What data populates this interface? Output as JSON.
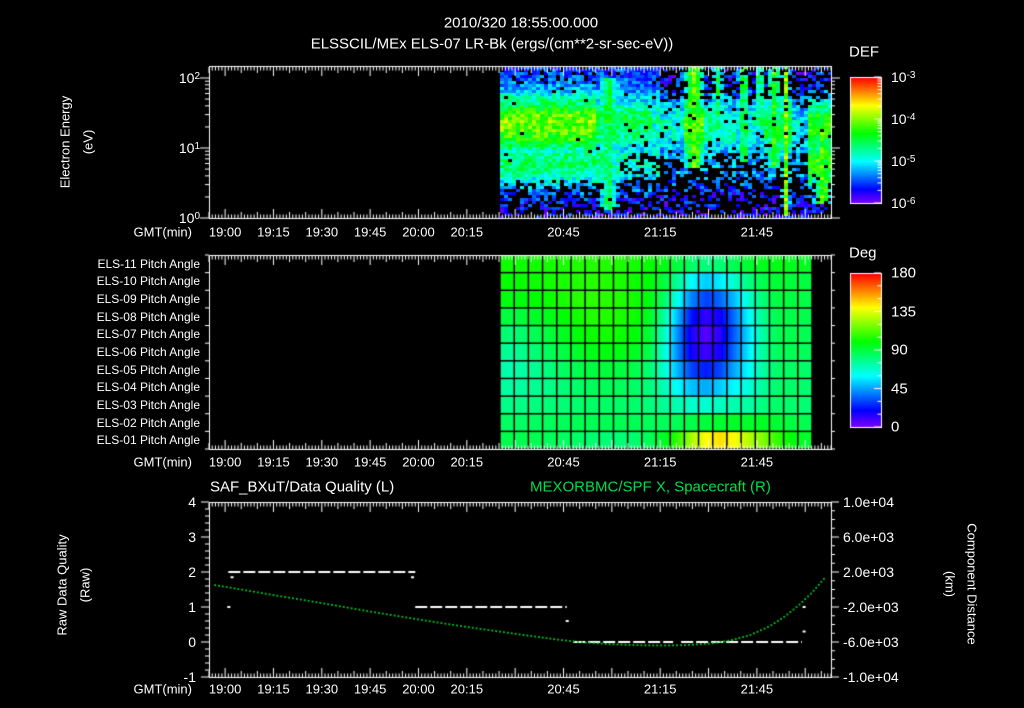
{
  "header": {
    "line1": "2010/320 18:55:00.000",
    "line2": "ELSSCIL/MEx ELS-07 LR-Bk  (ergs/(cm**2-sr-sec-eV))"
  },
  "colors": {
    "background": "#000000",
    "text": "#ffffff",
    "frame": "#ffffff",
    "curve_green": "#00cc22",
    "title_green": "#00dd44",
    "quality_white": "#ffffff"
  },
  "time_axis": {
    "label": "GMT(min)",
    "start_gmt": "18:55",
    "end_gmt": "22:08",
    "minutes_span": 193,
    "tick_labels": [
      {
        "text": "19:00",
        "t": 5
      },
      {
        "text": "19:15",
        "t": 20
      },
      {
        "text": "19:30",
        "t": 35
      },
      {
        "text": "19:45",
        "t": 50
      },
      {
        "text": "20:00",
        "t": 65
      },
      {
        "text": "20:15",
        "t": 80
      },
      {
        "text": "20:45",
        "t": 110
      },
      {
        "text": "21:15",
        "t": 140
      },
      {
        "text": "21:45",
        "t": 170
      }
    ]
  },
  "panels": {
    "spectrogram": {
      "y_axis_label": "Electron Energy",
      "y_axis_label2": "(eV)",
      "y_tick_labels": [
        {
          "text": "10^2",
          "logE": 2
        },
        {
          "text": "10^1",
          "logE": 1
        },
        {
          "text": "10^0",
          "logE": 0
        }
      ],
      "colorbar": {
        "title": "DEF",
        "tick_labels": [
          "10^-3",
          "10^-4",
          "10^-5",
          "10^-6"
        ]
      }
    },
    "pitch": {
      "colorbar": {
        "title": "Deg",
        "tick_labels": [
          "180",
          "135",
          "90",
          "45",
          "0"
        ]
      }
    },
    "quality": {
      "title_left": "SAF_BXuT/Data Quality (L)",
      "title_right": "MEXORBMC/SPF X, Spacecraft (R)",
      "left_axis_label": "Raw Data Quality",
      "left_axis_label2": "(Raw)",
      "left_tick_labels": [
        "4",
        "3",
        "2",
        "1",
        "0",
        "-1"
      ],
      "right_axis_label": "Component Distance",
      "right_axis_label2": "(km)",
      "right_tick_labels": [
        "1.0e+04",
        "6.0e+03",
        "2.0e+03",
        "-2.0e+03",
        "-6.0e+03",
        "-1.0e+04"
      ]
    }
  },
  "chart_data": [
    {
      "type": "heatmap",
      "name": "electron-energy-spectrogram",
      "title": "ELSSCIL/MEx ELS-07 LR-Bk (ergs/(cm**2-sr-sec-eV))",
      "xlabel": "GMT(min)",
      "ylabel": "Electron Energy (eV)",
      "x_range_gmt": [
        "18:55",
        "22:08"
      ],
      "y_scale": "log",
      "y_range_ev": [
        1,
        150
      ],
      "colorbar": {
        "title": "DEF",
        "scale": "log",
        "range": [
          1e-06,
          0.001
        ],
        "palette": "rainbow"
      },
      "data_start_gmt": "20:25",
      "features": {
        "data_start_min": 90,
        "background_log10": -5.75,
        "black_threshold": -5.98,
        "bands": [
          {
            "center_logE": 1.3,
            "sigma": 0.33,
            "amp_steps": [
              [
                90,
                1.65
              ],
              [
                120,
                1.2
              ],
              [
                128,
                1.15
              ],
              [
                137,
                0.9
              ],
              [
                147,
                1.6
              ],
              [
                154,
                1.0
              ],
              [
                163,
                0.9
              ],
              [
                172,
                1.25
              ],
              [
                177,
                1.4
              ],
              [
                181,
                0.75
              ],
              [
                186,
                1.5
              ]
            ]
          },
          {
            "center_logE": 0.78,
            "sigma": 0.28,
            "amp_steps": [
              [
                90,
                1.15
              ],
              [
                125,
                0.9
              ],
              [
                140,
                0.55
              ],
              [
                186,
                1.5
              ]
            ]
          }
        ],
        "streaks": [
          [
            124,
            2.0,
            0.2,
            1.9,
            1.15
          ],
          [
            150.5,
            2.2,
            0.8,
            2.2,
            1.65
          ],
          [
            158,
            1.2,
            1.55,
            2.2,
            1.2
          ],
          [
            166,
            1.2,
            0.9,
            2.2,
            1.35
          ],
          [
            171,
            1.0,
            1.4,
            2.2,
            1.3
          ],
          [
            175.5,
            1.5,
            0.8,
            2.2,
            1.45
          ],
          [
            179,
            0.8,
            0.1,
            2.2,
            1.75
          ],
          [
            190.5,
            1.8,
            0.3,
            1.15,
            1.6
          ]
        ]
      }
    },
    {
      "type": "heatmap",
      "name": "pitch-angle-grid",
      "xlabel": "GMT(min)",
      "colorbar": {
        "title": "Deg",
        "range": [
          0,
          180
        ],
        "palette": "rainbow"
      },
      "x_start_gmt": "20:25",
      "x_end_gmt": "22:02",
      "n_cols": 22,
      "rows": [
        "ELS-11 Pitch Angle",
        "ELS-10 Pitch Angle",
        "ELS-09 Pitch Angle",
        "ELS-08 Pitch Angle",
        "ELS-07 Pitch Angle",
        "ELS-06 Pitch Angle",
        "ELS-05 Pitch Angle",
        "ELS-04 Pitch Angle",
        "ELS-03 Pitch Angle",
        "ELS-02 Pitch Angle",
        "ELS-01 Pitch Angle"
      ],
      "values_deg": [
        [
          102,
          102,
          103,
          103,
          104,
          105,
          105,
          105,
          104,
          103,
          101,
          97,
          90,
          84,
          80,
          82,
          87,
          93,
          96,
          97,
          96,
          95
        ],
        [
          100,
          101,
          102,
          103,
          104,
          105,
          106,
          105,
          104,
          102,
          99,
          91,
          76,
          60,
          52,
          57,
          68,
          80,
          88,
          92,
          91,
          90
        ],
        [
          97,
          98,
          100,
          102,
          104,
          106,
          107,
          106,
          105,
          103,
          98,
          85,
          62,
          40,
          30,
          36,
          50,
          68,
          82,
          90,
          90,
          89
        ],
        [
          89,
          91,
          94,
          97,
          100,
          103,
          105,
          105,
          104,
          102,
          95,
          76,
          48,
          22,
          12,
          18,
          38,
          60,
          78,
          88,
          89,
          88
        ],
        [
          80,
          83,
          87,
          91,
          95,
          99,
          102,
          103,
          102,
          99,
          92,
          71,
          42,
          15,
          6,
          14,
          35,
          55,
          75,
          87,
          88,
          87
        ],
        [
          75,
          78,
          82,
          86,
          90,
          94,
          97,
          98,
          97,
          95,
          88,
          68,
          41,
          17,
          10,
          17,
          38,
          57,
          76,
          86,
          87,
          86
        ],
        [
          72,
          74,
          77,
          81,
          85,
          88,
          90,
          91,
          90,
          88,
          83,
          68,
          48,
          30,
          24,
          31,
          47,
          60,
          75,
          84,
          85,
          84
        ],
        [
          74,
          75,
          77,
          79,
          82,
          84,
          86,
          86,
          86,
          84,
          81,
          72,
          60,
          50,
          47,
          52,
          60,
          66,
          76,
          83,
          84,
          83
        ],
        [
          78,
          79,
          80,
          81,
          82,
          83,
          84,
          84,
          84,
          83,
          81,
          77,
          72,
          68,
          67,
          70,
          73,
          74,
          80,
          84,
          83,
          82
        ],
        [
          84,
          85,
          85,
          86,
          86,
          87,
          87,
          87,
          87,
          87,
          86,
          86,
          87,
          89,
          91,
          93,
          94,
          93,
          95,
          92,
          90,
          87
        ],
        [
          88,
          88,
          87,
          86,
          85,
          84,
          83,
          82,
          82,
          83,
          86,
          94,
          108,
          126,
          140,
          145,
          140,
          128,
          120,
          108,
          99,
          93
        ]
      ]
    },
    {
      "type": "line",
      "name": "quality-and-spacecraft-x",
      "title_left": "SAF_BXuT/Data Quality (L)",
      "title_right": "MEXORBMC/SPF X, Spacecraft (R)",
      "xlabel": "GMT(min)",
      "left_axis": {
        "label": "Raw Data Quality (Raw)",
        "range": [
          -1,
          4
        ]
      },
      "right_axis": {
        "label": "Component Distance (km)",
        "range": [
          -10000,
          10000
        ]
      },
      "quality_segments": [
        {
          "value": 2,
          "t0_min": 6,
          "t1_min": 64
        },
        {
          "value": 1,
          "t0_min": 64,
          "t1_min": 111
        },
        {
          "value": 0,
          "t0_min": 113,
          "t1_min": 144
        },
        {
          "value": 0,
          "t0_min": 146.5,
          "t1_min": 184
        }
      ],
      "quality_points": [
        [
          6,
          1
        ],
        [
          7,
          1.85
        ],
        [
          63,
          1.85
        ],
        [
          111,
          0.6
        ],
        [
          184.5,
          1.0
        ],
        [
          184.5,
          0.3
        ]
      ],
      "spacecraft_x_km": [
        [
          1,
          560
        ],
        [
          10,
          0
        ],
        [
          20,
          -640
        ],
        [
          30,
          -1240
        ],
        [
          40,
          -1880
        ],
        [
          50,
          -2520
        ],
        [
          60,
          -3120
        ],
        [
          70,
          -3720
        ],
        [
          80,
          -4280
        ],
        [
          90,
          -4800
        ],
        [
          100,
          -5320
        ],
        [
          108,
          -5720
        ],
        [
          116,
          -6040
        ],
        [
          124,
          -6240
        ],
        [
          132,
          -6360
        ],
        [
          140,
          -6400
        ],
        [
          148,
          -6360
        ],
        [
          156,
          -6160
        ],
        [
          162,
          -5800
        ],
        [
          168,
          -5200
        ],
        [
          174,
          -4200
        ],
        [
          179,
          -3000
        ],
        [
          183,
          -1800
        ],
        [
          187,
          -400
        ],
        [
          191,
          1300
        ]
      ]
    }
  ]
}
